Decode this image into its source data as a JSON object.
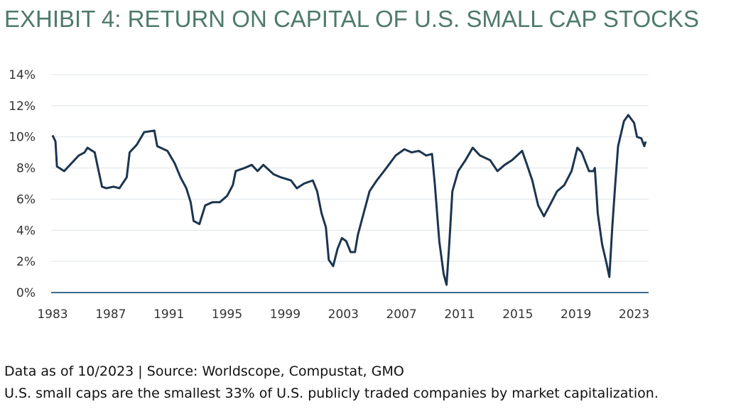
{
  "chart_data": {
    "type": "line",
    "title": "EXHIBIT 4: RETURN ON CAPITAL OF U.S. SMALL CAP STOCKS",
    "source": "Data as of 10/2023 | Source: Worldscope, Compustat, GMO",
    "note": "U.S. small caps are the smallest 33% of U.S. publicly traded companies by market capitalization.",
    "x": [
      1983.0,
      1983.2,
      1983.3,
      1983.8,
      1984.3,
      1984.8,
      1985.2,
      1985.4,
      1985.9,
      1986.1,
      1986.4,
      1986.7,
      1987.2,
      1987.6,
      1988.1,
      1988.3,
      1988.8,
      1989.3,
      1990.0,
      1990.2,
      1990.9,
      1991.4,
      1991.8,
      1992.2,
      1992.5,
      1992.7,
      1993.1,
      1993.5,
      1994.0,
      1994.5,
      1995.0,
      1995.4,
      1995.6,
      1996.2,
      1996.7,
      1997.1,
      1997.5,
      1998.2,
      1998.7,
      1999.4,
      1999.8,
      2000.3,
      2000.9,
      2001.2,
      2001.5,
      2001.8,
      2002.0,
      2002.3,
      2002.6,
      2002.9,
      2003.2,
      2003.5,
      2003.8,
      2004.0,
      2004.4,
      2004.8,
      2005.3,
      2005.8,
      2006.2,
      2006.6,
      2007.2,
      2007.7,
      2008.2,
      2008.7,
      2009.1,
      2009.3,
      2009.6,
      2009.9,
      2010.1,
      2010.3,
      2010.5,
      2010.9,
      2011.4,
      2011.9,
      2012.4,
      2013.1,
      2013.6,
      2014.1,
      2014.6,
      2015.3,
      2015.6,
      2016.0,
      2016.4,
      2016.8,
      2017.2,
      2017.7,
      2018.2,
      2018.7,
      2019.1,
      2019.4,
      2019.9,
      2020.2,
      2020.3,
      2020.5,
      2020.8,
      2021.1,
      2021.3,
      2021.5,
      2021.7,
      2021.9,
      2022.3,
      2022.6,
      2023.0,
      2023.2,
      2023.5,
      2023.7,
      2023.8
    ],
    "series": [
      {
        "color": "#1c3550",
        "values": [
          10.1,
          9.7,
          8.1,
          7.8,
          8.3,
          8.8,
          9.0,
          9.3,
          9.0,
          8.1,
          6.8,
          6.7,
          6.8,
          6.7,
          7.4,
          9.0,
          9.5,
          10.3,
          10.4,
          9.4,
          9.1,
          8.3,
          7.4,
          6.7,
          5.8,
          4.6,
          4.4,
          5.6,
          5.8,
          5.8,
          6.2,
          6.9,
          7.8,
          8.0,
          8.2,
          7.8,
          8.2,
          7.6,
          7.4,
          7.2,
          6.7,
          7.0,
          7.2,
          6.5,
          5.1,
          4.2,
          2.1,
          1.7,
          2.8,
          3.5,
          3.3,
          2.6,
          2.6,
          3.7,
          5.1,
          6.5,
          7.2,
          7.8,
          8.3,
          8.8,
          9.2,
          9.0,
          9.1,
          8.8,
          8.9,
          6.9,
          3.3,
          1.2,
          0.5,
          3.3,
          6.5,
          7.8,
          8.5,
          9.3,
          8.8,
          8.5,
          7.8,
          8.2,
          8.5,
          9.1,
          8.3,
          7.2,
          5.6,
          4.9,
          5.6,
          6.5,
          6.9,
          7.8,
          9.3,
          9.0,
          7.8,
          7.8,
          8.0,
          5.1,
          3.1,
          1.9,
          1.0,
          4.2,
          6.9,
          9.4,
          11.0,
          11.4,
          10.9,
          10.0,
          9.9,
          9.4,
          9.7
        ]
      }
    ],
    "xlim": [
      1983,
      2024
    ],
    "xticks": [
      1983,
      1987,
      1991,
      1995,
      1999,
      2003,
      2007,
      2011,
      2015,
      2019,
      2023
    ],
    "ylim": [
      0,
      14
    ],
    "yticks": [
      {
        "value": 0,
        "label": "0%"
      },
      {
        "value": 2,
        "label": "2%"
      },
      {
        "value": 4,
        "label": "4%"
      },
      {
        "value": 6,
        "label": "6%"
      },
      {
        "value": 8,
        "label": "8%"
      },
      {
        "value": 10,
        "label": "10%"
      },
      {
        "value": 12,
        "label": "12%"
      },
      {
        "value": 14,
        "label": "14%"
      }
    ],
    "grid": true
  }
}
